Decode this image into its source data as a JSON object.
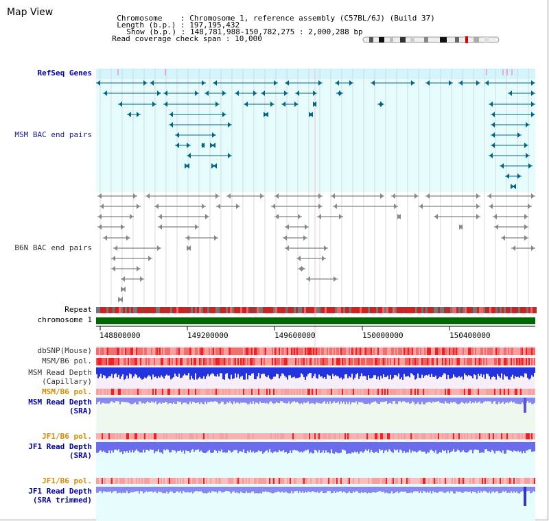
{
  "header": {
    "title": "Map View",
    "chromosome_label": "Chromosome",
    "chromosome_value": "Chromosome 1, reference assembly (C57BL/6J) (Build 37)",
    "length_label": "Length (b.p.)",
    "length_value": "197,195,432",
    "show_label": "Show (b.p.)",
    "show_value": "148,781,988-150,782,275 : 2,000,288 bp",
    "span_label": "Read coverage check span",
    "span_value": "10,000"
  },
  "tracks": {
    "refseq": "RefSeq Genes",
    "msm_bac": "MSM BAC end pairs",
    "b6n_bac": "B6N BAC end pairs",
    "repeat": "Repeat",
    "chromosome": "chromosome 1",
    "dbsnp": "dbSNP(Mouse)",
    "msm_b6_pol": "MSM/B6 pol.",
    "msm_rd_cap_1": "MSM Read Depth",
    "msm_rd_cap_2": "(Capillary)",
    "msm_b6_pol2": "MSM/B6 pol.",
    "msm_rd_sra_1": "MSM Read Depth",
    "msm_rd_sra_2": "(SRA)",
    "jf1_b6_pol": "JF1/B6 pol.",
    "jf1_rd_sra_1": "JF1 Read Depth",
    "jf1_rd_sra_2": "(SRA)",
    "jf1_b6_pol2": "JF1/B6 pol.",
    "jf1_rd_trim_1": "JF1 Read Depth",
    "jf1_rd_trim_2": "(SRA trimmed)"
  },
  "axis": {
    "ticks": [
      "148800000",
      "149200000",
      "149600000",
      "150000000",
      "150400000"
    ]
  },
  "colors": {
    "teal": "#006688",
    "gray_feature": "#666666",
    "chromosome_bar": "#006600",
    "read_depth_blue": "#2222dd",
    "read_depth_light": "#8888ee",
    "pol_red": "#ee3333",
    "orange_label": "#dd8800"
  }
}
